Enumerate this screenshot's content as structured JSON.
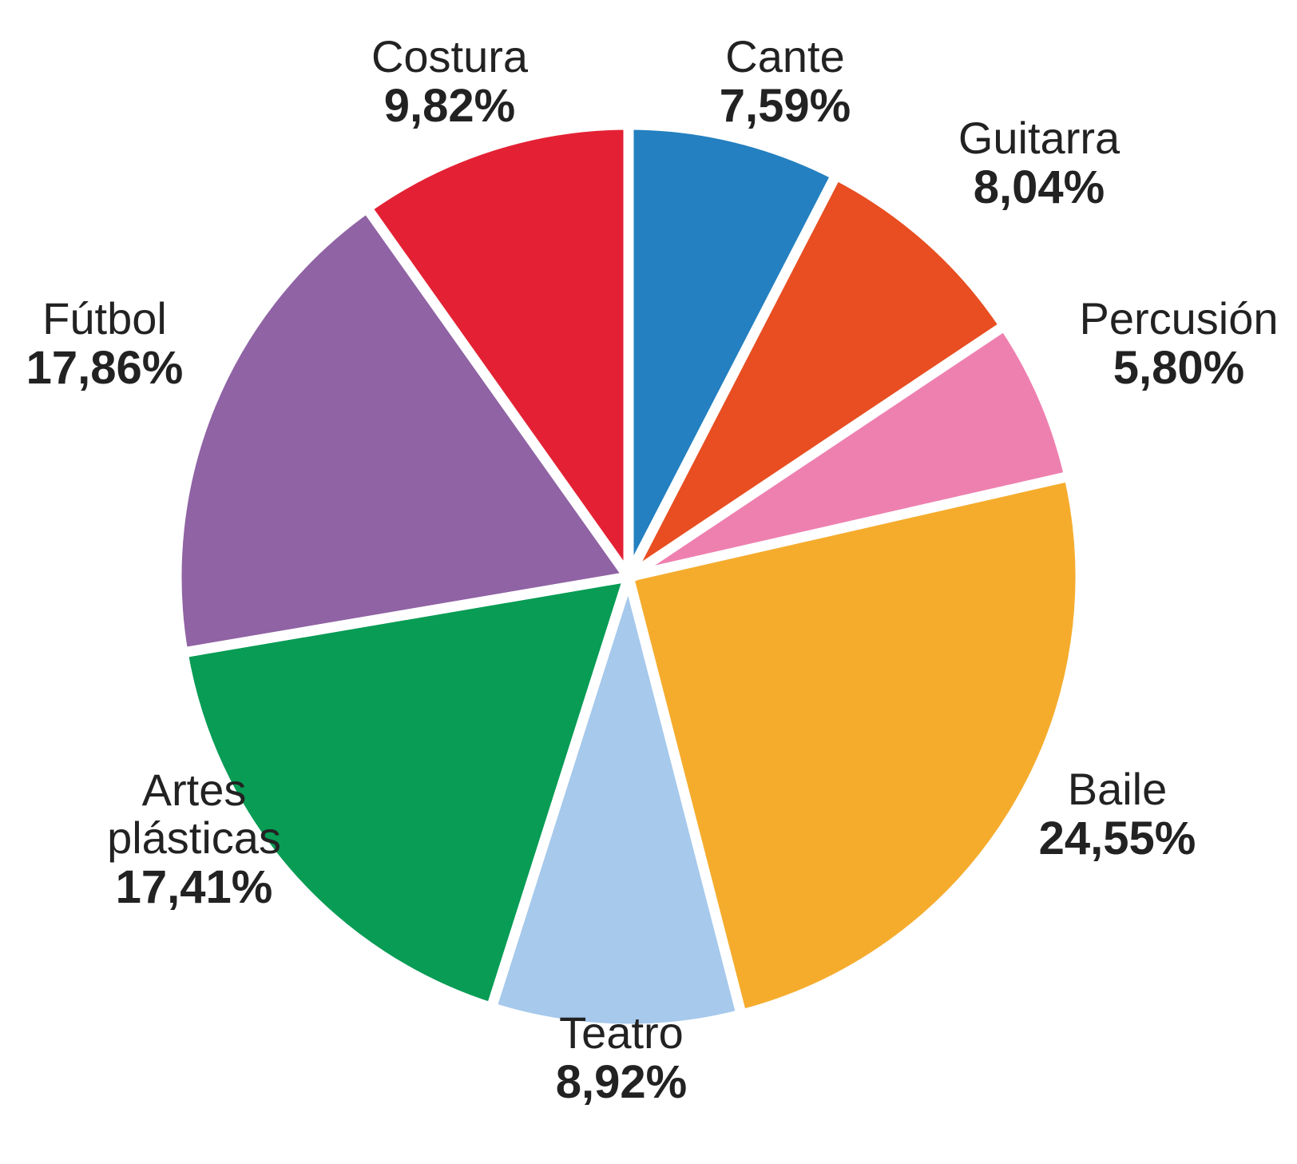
{
  "chart_data": {
    "type": "pie",
    "title": "",
    "start_angle_deg": 0,
    "direction": "clockwise",
    "slices": [
      {
        "label": [
          "Cante"
        ],
        "value_label": "7,59%",
        "value": 7.59,
        "color": "#2480C0"
      },
      {
        "label": [
          "Guitarra"
        ],
        "value_label": "8,04%",
        "value": 8.04,
        "color": "#E84E21"
      },
      {
        "label": [
          "Percusión"
        ],
        "value_label": "5,80%",
        "value": 5.8,
        "color": "#EE80B0"
      },
      {
        "label": [
          "Baile"
        ],
        "value_label": "24,55%",
        "value": 24.55,
        "color": "#F5AC2D"
      },
      {
        "label": [
          "Teatro"
        ],
        "value_label": "8,92%",
        "value": 8.92,
        "color": "#A6C9EC"
      },
      {
        "label": [
          "Artes",
          "plásticas"
        ],
        "value_label": "17,41%",
        "value": 17.41,
        "color": "#089C55"
      },
      {
        "label": [
          "Fútbol"
        ],
        "value_label": "17,86%",
        "value": 17.86,
        "color": "#8F63A4"
      },
      {
        "label": [
          "Costura"
        ],
        "value_label": "9,82%",
        "value": 9.82,
        "color": "#E42134"
      }
    ]
  }
}
